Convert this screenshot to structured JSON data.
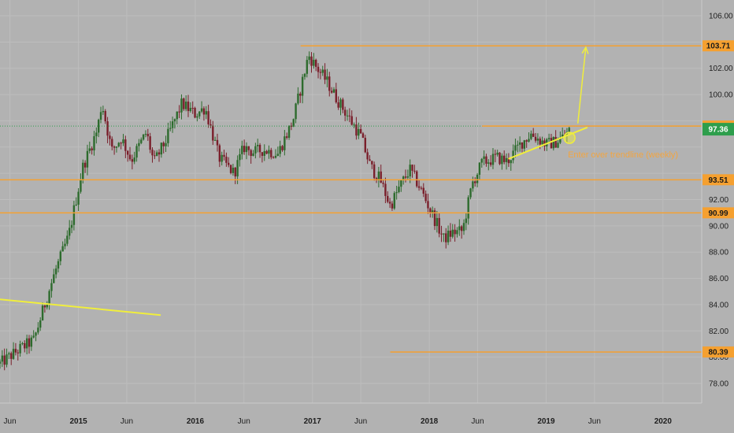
{
  "chart_data": {
    "type": "candlestick",
    "title": "",
    "y_ticks": [
      78,
      80,
      82,
      84,
      86,
      88,
      90,
      92,
      94,
      96,
      98,
      100,
      102,
      104,
      106
    ],
    "y_tick_labels": [
      "78.00",
      "80.00",
      "82.00",
      "84.00",
      "86.00",
      "88.00",
      "90.00",
      "92.00",
      "",
      "",
      "",
      "100.00",
      "102.00",
      "",
      "106.00"
    ],
    "ylim": [
      76.5,
      107.2
    ],
    "x_ticks": [
      {
        "label": "Jun",
        "date": "2014-06-01",
        "bold": false
      },
      {
        "label": "2015",
        "date": "2015-01-01",
        "bold": true
      },
      {
        "label": "Jun",
        "date": "2015-06-01",
        "bold": false
      },
      {
        "label": "2016",
        "date": "2016-01-01",
        "bold": true
      },
      {
        "label": "Jun",
        "date": "2016-06-01",
        "bold": false
      },
      {
        "label": "2017",
        "date": "2017-01-01",
        "bold": true
      },
      {
        "label": "Jun",
        "date": "2017-06-01",
        "bold": false
      },
      {
        "label": "2018",
        "date": "2018-01-01",
        "bold": true
      },
      {
        "label": "Jun",
        "date": "2018-06-01",
        "bold": false
      },
      {
        "label": "2019",
        "date": "2019-01-01",
        "bold": true
      },
      {
        "label": "Jun",
        "date": "2019-06-01",
        "bold": false
      },
      {
        "label": "2020",
        "date": "2020-01-01",
        "bold": true
      }
    ],
    "xlim": [
      "2014-05-01",
      "2020-05-01"
    ],
    "price_path": [
      [
        "2014-05-01",
        79.5
      ],
      [
        "2014-07-01",
        80.6
      ],
      [
        "2014-08-15",
        81.3
      ],
      [
        "2014-09-20",
        84.2
      ],
      [
        "2014-10-20",
        86.5
      ],
      [
        "2014-12-01",
        89.2
      ],
      [
        "2015-01-15",
        94.5
      ],
      [
        "2015-03-01",
        97.3
      ],
      [
        "2015-03-15",
        99.4
      ],
      [
        "2015-04-15",
        95.7
      ],
      [
        "2015-05-15",
        96.7
      ],
      [
        "2015-06-15",
        95.0
      ],
      [
        "2015-08-01",
        97.1
      ],
      [
        "2015-08-25",
        94.8
      ],
      [
        "2015-10-01",
        96.5
      ],
      [
        "2015-11-20",
        99.3
      ],
      [
        "2016-01-01",
        98.5
      ],
      [
        "2016-02-01",
        99.0
      ],
      [
        "2016-03-15",
        95.2
      ],
      [
        "2016-05-01",
        94.0
      ],
      [
        "2016-06-01",
        96.0
      ],
      [
        "2016-07-01",
        95.6
      ],
      [
        "2016-08-01",
        95.8
      ],
      [
        "2016-09-15",
        95.5
      ],
      [
        "2016-11-01",
        98.0
      ],
      [
        "2016-12-20",
        103.0
      ],
      [
        "2017-01-10",
        102.2
      ],
      [
        "2017-02-15",
        101.0
      ],
      [
        "2017-03-15",
        99.8
      ],
      [
        "2017-05-01",
        98.0
      ],
      [
        "2017-06-01",
        96.8
      ],
      [
        "2017-07-01",
        94.5
      ],
      [
        "2017-08-01",
        93.5
      ],
      [
        "2017-09-01",
        91.5
      ],
      [
        "2017-10-01",
        93.0
      ],
      [
        "2017-11-01",
        94.3
      ],
      [
        "2017-12-01",
        93.0
      ],
      [
        "2018-02-15",
        89.0
      ],
      [
        "2018-03-15",
        89.5
      ],
      [
        "2018-04-15",
        89.6
      ],
      [
        "2018-05-15",
        93.2
      ],
      [
        "2018-06-15",
        94.8
      ],
      [
        "2018-08-01",
        95.2
      ],
      [
        "2018-09-01",
        94.9
      ],
      [
        "2018-10-15",
        96.3
      ],
      [
        "2018-11-15",
        97.0
      ],
      [
        "2019-01-01",
        96.2
      ],
      [
        "2019-02-01",
        96.4
      ],
      [
        "2019-03-01",
        96.9
      ],
      [
        "2019-03-20",
        97.4
      ]
    ],
    "levels": [
      {
        "value": 103.71,
        "label": "103.71",
        "start": "2016-11-25"
      },
      {
        "value": 97.6,
        "label": "97.60",
        "start": "2018-06-15"
      },
      {
        "value": 93.51,
        "label": "93.51",
        "start": "2014-05-01"
      },
      {
        "value": 90.99,
        "label": "90.99",
        "start": "2014-05-01"
      },
      {
        "value": 80.39,
        "label": "80.39",
        "start": "2017-09-01"
      }
    ],
    "current_price": {
      "value": 97.36,
      "label": "97.36",
      "line_value": 97.6
    },
    "trendlines": [
      {
        "from": [
          "2014-05-01",
          84.4
        ],
        "to": [
          "2015-09-15",
          83.2
        ]
      },
      {
        "from": [
          "2018-09-05",
          95.1
        ],
        "to": [
          "2019-05-10",
          97.5
        ]
      }
    ],
    "arrow": {
      "from": [
        "2019-04-10",
        97.8
      ],
      "to": [
        "2019-05-05",
        103.6
      ]
    },
    "marker": {
      "date": "2019-03-15",
      "value": 96.7
    },
    "annotation": {
      "text": "Enter over trendline (weekly)",
      "date": "2019-03-10",
      "value": 95.2
    },
    "colors": {
      "background": "#b2b2b2",
      "up": "#2d6b2d",
      "down": "#7a1f2b",
      "level": "#f5a030",
      "trend": "#f0ee3c",
      "current": "#2e9e4c",
      "grid": "#bdbdbd"
    }
  }
}
